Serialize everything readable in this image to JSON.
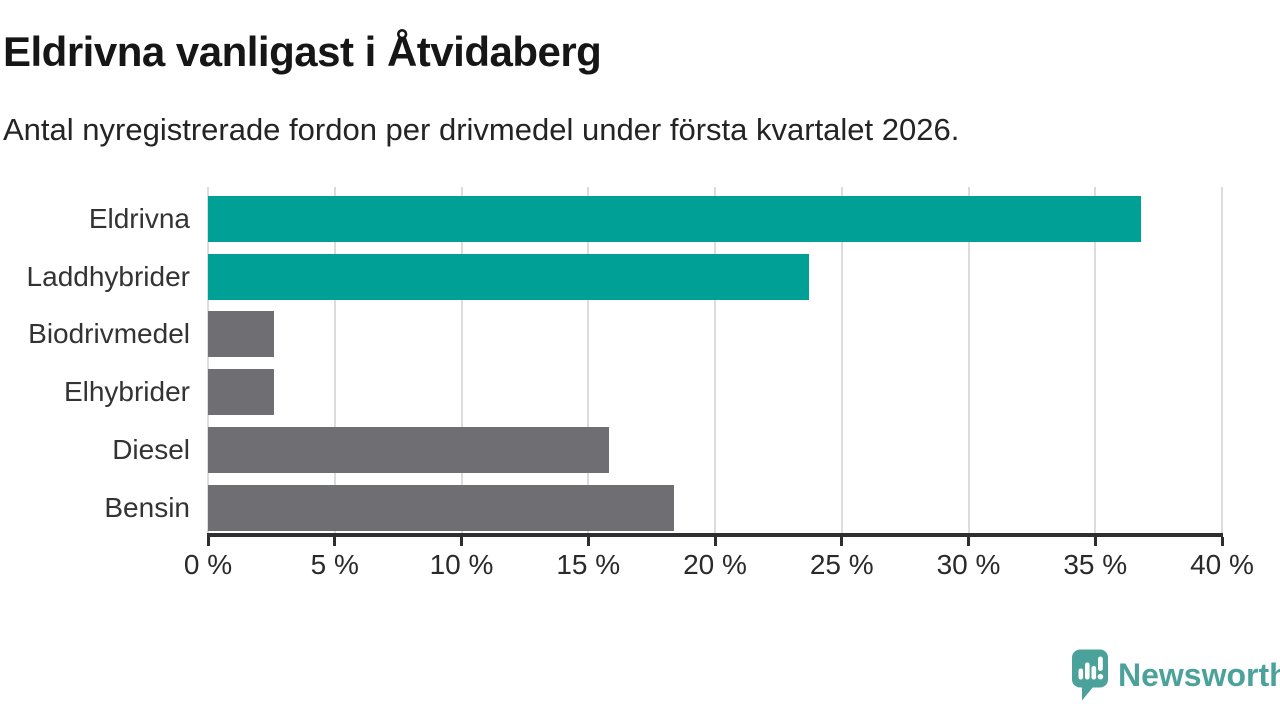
{
  "title": "Eldrivna vanligast i Åtvidaberg",
  "subtitle": "Antal nyregistrerade fordon per drivmedel under första kvartalet 2026.",
  "branding": {
    "name": "Newsworthy"
  },
  "colors": {
    "bar_teal": "#00A096",
    "bar_gray": "#6E6E73",
    "logo_teal": "#4AA29A",
    "gridline": "#DCDCDC",
    "axis": "#2E2E2E"
  },
  "chart_data": {
    "type": "bar",
    "orientation": "horizontal",
    "title": "Eldrivna vanligast i Åtvidaberg",
    "subtitle": "Antal nyregistrerade fordon per drivmedel under första kvartalet 2026.",
    "xlabel": "",
    "ylabel": "",
    "unit": "%",
    "categories": [
      "Eldrivna",
      "Laddhybrider",
      "Biodrivmedel",
      "Elhybrider",
      "Diesel",
      "Bensin"
    ],
    "values": [
      36.8,
      23.7,
      2.6,
      2.6,
      15.8,
      18.4
    ],
    "bar_colors": [
      "#00A096",
      "#00A096",
      "#6E6E73",
      "#6E6E73",
      "#6E6E73",
      "#6E6E73"
    ],
    "xlim": [
      0,
      40
    ],
    "x_ticks": [
      0,
      5,
      10,
      15,
      20,
      25,
      30,
      35,
      40
    ],
    "x_tick_labels": [
      "0 %",
      "5 %",
      "10 %",
      "15 %",
      "20 %",
      "25 %",
      "30 %",
      "35 %",
      "40 %"
    ],
    "grid": true,
    "legend": "none"
  }
}
